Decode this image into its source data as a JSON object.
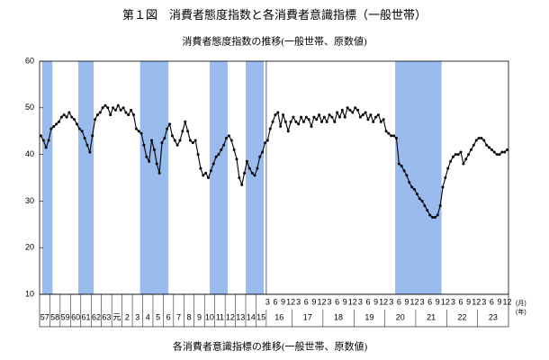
{
  "chart_data": {
    "type": "line",
    "title": "第１図　消費者態度指数と各消費者意識指標（一般世帯）",
    "subtitle": "消費者態度指数の推移(一般世帯、原数値)",
    "caption": "各消費者意識指標の推移(一般世帯、原数値)",
    "month_unit": "(月)",
    "year_unit": "(年)",
    "color": "#000000",
    "shade_color": "#99bbee",
    "ylim": [
      10,
      60
    ],
    "yticks": [
      10,
      20,
      30,
      40,
      50,
      60
    ],
    "values": [
      44,
      43,
      41.5,
      43,
      45.5,
      46,
      46.5,
      47,
      48,
      48.5,
      48,
      49,
      48,
      47.5,
      46.5,
      45.5,
      45,
      43.5,
      42,
      40.5,
      44,
      47.5,
      48.5,
      49,
      50,
      50.5,
      50,
      48.5,
      50,
      49.5,
      50.5,
      49.5,
      50,
      49,
      48.5,
      49.5,
      48.5,
      45.5,
      45,
      44.5,
      42,
      39.5,
      38.5,
      43,
      41,
      38,
      36,
      42.5,
      43.5,
      45.5,
      46.5,
      44,
      43,
      42,
      43,
      45,
      47,
      45,
      43,
      42.5,
      43,
      40,
      37,
      35.5,
      36,
      35,
      36.5,
      38,
      39.5,
      40,
      41,
      42,
      43.5,
      44,
      43,
      41,
      39,
      35,
      33.5,
      36,
      38.5,
      37,
      36,
      35.5,
      37,
      39.5,
      40.5,
      42.5,
      43,
      45.5,
      47,
      48.5,
      49,
      46,
      48.5,
      47,
      45,
      47,
      48,
      47,
      46.5,
      48,
      47,
      48,
      47.5,
      46,
      48,
      47.5,
      48.5,
      47,
      48,
      47,
      48.5,
      48,
      47,
      49,
      48,
      49.5,
      48,
      50,
      49.5,
      49,
      50,
      49.5,
      48,
      48.5,
      49,
      47.5,
      48.5,
      47,
      48,
      48.5,
      47,
      47.5,
      45,
      44.5,
      44,
      44,
      43.5,
      38,
      37.5,
      36.5,
      35.5,
      34,
      33,
      32.5,
      31.5,
      30.5,
      30,
      29,
      28,
      27,
      26.5,
      26.5,
      27,
      29,
      33,
      35,
      37,
      38.5,
      39.5,
      40,
      40,
      40.5,
      38,
      39,
      40,
      41,
      42,
      43,
      43.5,
      43.5,
      43,
      42,
      41.5,
      41,
      40.5,
      40,
      40,
      40.5,
      40.5,
      41
    ],
    "categories": [
      null,
      null,
      null,
      null,
      null,
      null,
      null,
      null,
      null,
      null,
      null,
      null,
      null,
      null,
      null,
      null,
      null,
      null,
      null,
      null,
      null,
      null,
      null,
      null,
      null,
      null,
      null,
      null,
      null,
      null,
      null,
      null,
      null,
      null,
      null,
      null,
      null,
      null,
      null,
      null,
      null,
      null,
      null,
      null,
      null,
      null,
      null,
      null,
      null,
      null,
      null,
      null,
      null,
      null,
      null,
      null,
      null,
      null,
      null,
      null,
      null,
      null,
      null,
      null,
      null,
      null,
      null,
      null,
      null,
      null,
      null,
      null,
      null,
      null,
      null,
      null,
      null,
      null,
      null,
      null,
      null,
      null,
      null,
      null,
      null,
      null,
      null,
      null,
      "3",
      null,
      null,
      "6",
      null,
      null,
      "9",
      null,
      null,
      "12",
      null,
      null,
      "3",
      null,
      null,
      "6",
      null,
      null,
      "9",
      null,
      null,
      "12",
      null,
      null,
      "3",
      null,
      null,
      "6",
      null,
      null,
      "9",
      null,
      null,
      "12",
      null,
      null,
      "3",
      null,
      null,
      "6",
      null,
      null,
      "9",
      null,
      null,
      "12",
      null,
      null,
      "3",
      null,
      null,
      "6",
      null,
      null,
      "9",
      null,
      null,
      "12",
      null,
      null,
      "3",
      null,
      null,
      "6",
      null,
      null,
      "9",
      null,
      null,
      "12",
      null,
      null,
      "3",
      null,
      null,
      "6",
      null,
      null,
      "9",
      null,
      null,
      "12",
      null,
      null,
      "3",
      null,
      null,
      "6",
      null,
      null,
      "9",
      null,
      null,
      "12"
    ],
    "years": [
      "57",
      "57",
      "57",
      "57",
      "58",
      "58",
      "58",
      "58",
      "59",
      "59",
      "59",
      "59",
      "60",
      "60",
      "60",
      "60",
      "61",
      "61",
      "61",
      "61",
      "62",
      "62",
      "62",
      "62",
      "63",
      "63",
      "63",
      "63",
      "元",
      "元",
      "元",
      "元",
      "2",
      "2",
      "2",
      "2",
      "3",
      "3",
      "3",
      "3",
      "4",
      "4",
      "4",
      "4",
      "5",
      "5",
      "5",
      "5",
      "6",
      "6",
      "6",
      "6",
      "7",
      "7",
      "7",
      "7",
      "8",
      "8",
      "8",
      "8",
      "9",
      "9",
      "9",
      "9",
      "10",
      "10",
      "10",
      "10",
      "11",
      "11",
      "11",
      "11",
      "12",
      "12",
      "12",
      "12",
      "13",
      "13",
      "13",
      "13",
      "14",
      "14",
      "14",
      "14",
      "15",
      "15",
      "15",
      "15",
      "16",
      "16",
      "16",
      "16",
      "16",
      "16",
      "16",
      "16",
      "16",
      "16",
      "17",
      "17",
      "17",
      "17",
      "17",
      "17",
      "17",
      "17",
      "17",
      "17",
      "17",
      "17",
      "18",
      "18",
      "18",
      "18",
      "18",
      "18",
      "18",
      "18",
      "18",
      "18",
      "18",
      "18",
      "19",
      "19",
      "19",
      "19",
      "19",
      "19",
      "19",
      "19",
      "19",
      "19",
      "19",
      "19",
      "20",
      "20",
      "20",
      "20",
      "20",
      "20",
      "20",
      "20",
      "20",
      "20",
      "20",
      "20",
      "21",
      "21",
      "21",
      "21",
      "21",
      "21",
      "21",
      "21",
      "21",
      "21",
      "21",
      "21",
      "22",
      "22",
      "22",
      "22",
      "22",
      "22",
      "22",
      "22",
      "22",
      "22",
      "22",
      "22",
      "23",
      "23",
      "23",
      "23",
      "23",
      "23",
      "23",
      "23",
      "23",
      "23",
      "23",
      "23"
    ],
    "shade": [
      false,
      true,
      true,
      true,
      true,
      false,
      false,
      false,
      false,
      false,
      false,
      false,
      false,
      false,
      false,
      true,
      true,
      true,
      true,
      true,
      true,
      false,
      false,
      false,
      false,
      false,
      false,
      false,
      false,
      false,
      false,
      false,
      false,
      false,
      false,
      false,
      false,
      false,
      false,
      true,
      true,
      true,
      true,
      true,
      true,
      true,
      true,
      true,
      true,
      true,
      false,
      false,
      false,
      false,
      false,
      false,
      false,
      false,
      false,
      false,
      false,
      false,
      false,
      false,
      false,
      false,
      true,
      true,
      true,
      true,
      true,
      true,
      true,
      false,
      false,
      false,
      false,
      false,
      false,
      false,
      true,
      true,
      true,
      true,
      true,
      true,
      true,
      false,
      false,
      false,
      false,
      false,
      false,
      false,
      false,
      false,
      false,
      false,
      false,
      false,
      false,
      false,
      false,
      false,
      false,
      false,
      false,
      false,
      false,
      false,
      false,
      false,
      false,
      false,
      false,
      false,
      false,
      false,
      false,
      false,
      false,
      false,
      false,
      false,
      false,
      false,
      false,
      false,
      false,
      false,
      false,
      false,
      false,
      false,
      false,
      false,
      false,
      false,
      true,
      true,
      true,
      true,
      true,
      true,
      true,
      true,
      true,
      true,
      true,
      true,
      true,
      true,
      true,
      true,
      true,
      true,
      false,
      false,
      false,
      false,
      false,
      false,
      false,
      false,
      false,
      false,
      false,
      false,
      false,
      false,
      false,
      false,
      false,
      false,
      false,
      false,
      false,
      false,
      false,
      false,
      false,
      false
    ]
  }
}
